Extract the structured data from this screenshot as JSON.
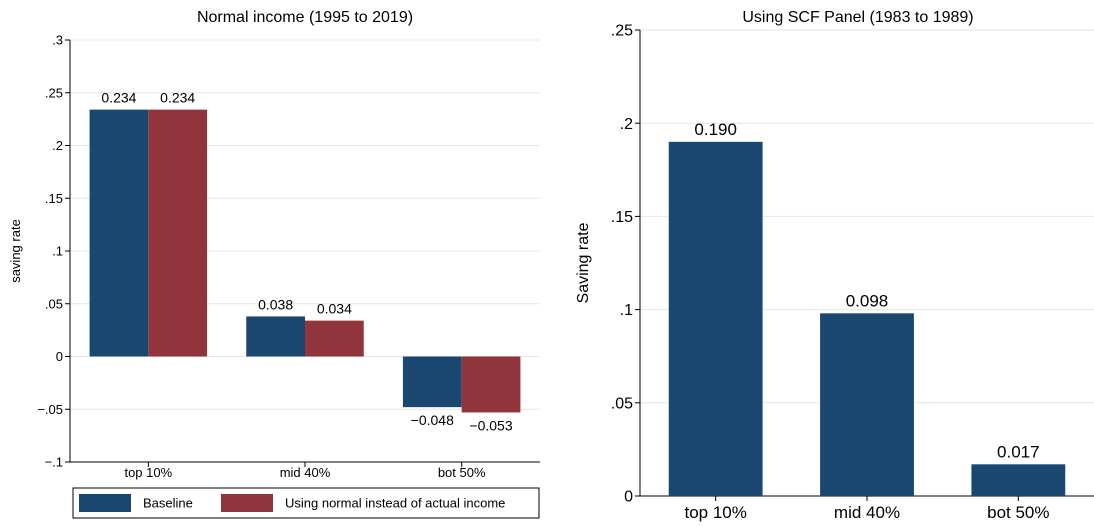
{
  "chart_data": [
    {
      "type": "bar",
      "title": "Normal income (1995 to 2019)",
      "ylabel": "saving rate",
      "xlabel": "",
      "categories": [
        "top 10%",
        "mid 40%",
        "bot 50%"
      ],
      "series": [
        {
          "name": "Baseline",
          "values": [
            0.234,
            0.038,
            -0.048
          ],
          "labels": [
            "0.234",
            "0.038",
            "−0.048"
          ],
          "color": "#1a476f"
        },
        {
          "name": "Using normal instead of actual income",
          "values": [
            0.234,
            0.034,
            -0.053
          ],
          "labels": [
            "0.234",
            "0.034",
            "−0.053"
          ],
          "color": "#90353b"
        }
      ],
      "ylim": [
        -0.1,
        0.3
      ],
      "yticks": [
        -0.1,
        -0.05,
        0,
        0.05,
        0.1,
        0.15,
        0.2,
        0.25,
        0.3
      ],
      "ytick_labels": [
        "−.1",
        "−.05",
        "0",
        ".05",
        ".1",
        ".15",
        ".2",
        ".25",
        ".3"
      ],
      "grid": true,
      "legend": "bottom"
    },
    {
      "type": "bar",
      "title": "Using SCF Panel (1983 to 1989)",
      "ylabel": "Saving rate",
      "xlabel": "",
      "categories": [
        "top 10%",
        "mid 40%",
        "bot 50%"
      ],
      "series": [
        {
          "values": [
            0.19,
            0.098,
            0.017
          ],
          "labels": [
            "0.190",
            "0.098",
            "0.017"
          ],
          "color": "#1a476f"
        }
      ],
      "ylim": [
        0,
        0.25
      ],
      "yticks": [
        0,
        0.05,
        0.1,
        0.15,
        0.2,
        0.25
      ],
      "ytick_labels": [
        "0",
        ".05",
        ".1",
        ".15",
        ".2",
        ".25"
      ],
      "grid": true,
      "legend": "none"
    }
  ]
}
